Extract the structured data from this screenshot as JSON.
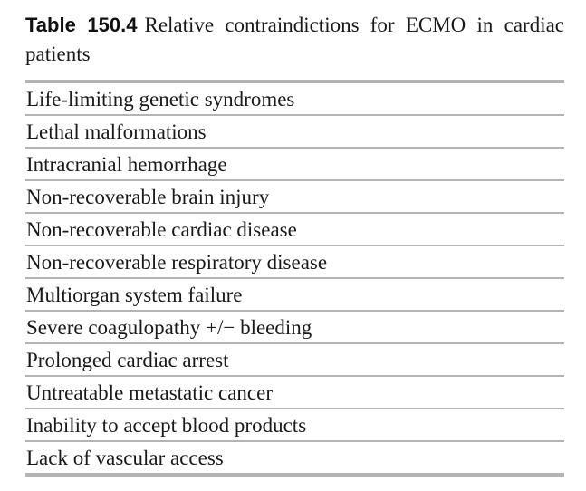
{
  "table": {
    "label": "Table 150.4",
    "title": "Relative contraindictions for ECMO in cardiac patients",
    "rows": [
      "Life-limiting genetic syndromes",
      "Lethal malformations",
      "Intracranial hemorrhage",
      "Non-recoverable brain injury",
      "Non-recoverable cardiac disease",
      "Non-recoverable respiratory disease",
      "Multiorgan system failure",
      "Severe coagulopathy +/− bleeding",
      "Prolonged cardiac arrest",
      "Untreatable metastatic cancer",
      "Inability to accept blood products",
      "Lack of vascular access"
    ]
  }
}
